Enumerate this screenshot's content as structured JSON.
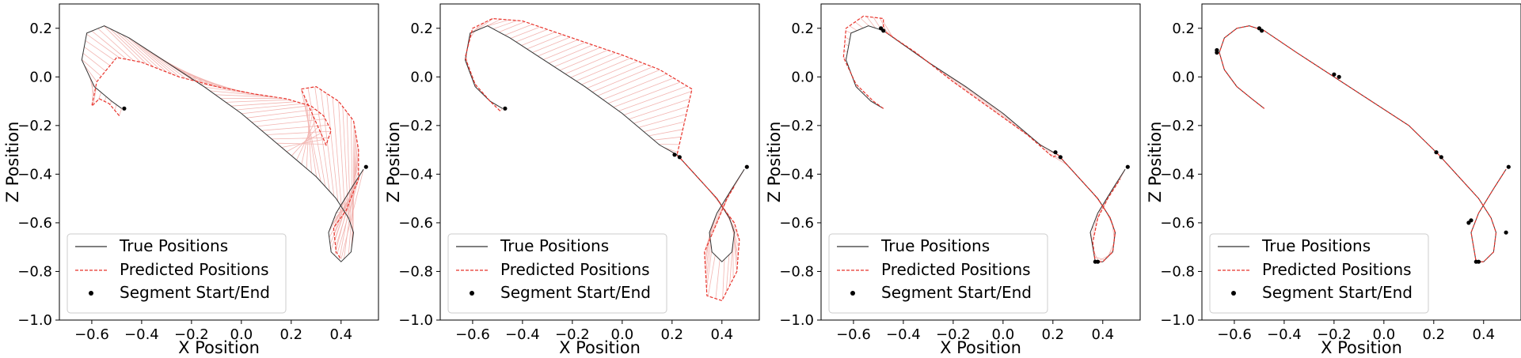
{
  "chart_data": [
    {
      "type": "line",
      "xlabel": "X Position",
      "ylabel": "Z Position",
      "xlim": [
        -0.73,
        0.55
      ],
      "ylim": [
        -1.0,
        0.3
      ],
      "xticks": [
        "-0.6",
        "-0.4",
        "-0.2",
        "0.0",
        "0.2",
        "0.4"
      ],
      "yticks": [
        "0.2",
        "0.0",
        "-0.2",
        "-0.4",
        "-0.6",
        "-0.8",
        "-1.0"
      ],
      "legend": {
        "position": "lower-left",
        "entries": [
          "True Positions",
          "Predicted Positions",
          "Segment Start/End"
        ]
      },
      "grid": false,
      "true_positions": {
        "x": [
          -0.48,
          -0.52,
          -0.59,
          -0.64,
          -0.62,
          -0.55,
          -0.45,
          -0.3,
          -0.15,
          0.0,
          0.15,
          0.3,
          0.38,
          0.43,
          0.45,
          0.44,
          0.4,
          0.36,
          0.35,
          0.38,
          0.44,
          0.49
        ],
        "y": [
          -0.13,
          -0.1,
          -0.04,
          0.07,
          0.18,
          0.21,
          0.16,
          0.06,
          -0.04,
          -0.15,
          -0.28,
          -0.41,
          -0.5,
          -0.58,
          -0.64,
          -0.72,
          -0.76,
          -0.72,
          -0.64,
          -0.56,
          -0.46,
          -0.38
        ]
      },
      "predicted_positions": {
        "x": [
          -0.49,
          -0.53,
          -0.57,
          -0.6,
          -0.58,
          -0.5,
          -0.4,
          -0.25,
          -0.1,
          0.05,
          0.18,
          0.28,
          0.33,
          0.36,
          0.34,
          0.24,
          0.3,
          0.39,
          0.45,
          0.47,
          0.47,
          0.42,
          0.37,
          0.38,
          0.4
        ],
        "y": [
          -0.16,
          -0.11,
          -0.09,
          -0.12,
          -0.02,
          0.08,
          0.06,
          0.0,
          -0.04,
          -0.07,
          -0.09,
          -0.12,
          -0.16,
          -0.22,
          -0.28,
          -0.05,
          -0.04,
          -0.1,
          -0.18,
          -0.3,
          -0.42,
          -0.55,
          -0.62,
          -0.72,
          -0.75
        ]
      },
      "segment_points": {
        "x": [
          -0.47,
          0.5
        ],
        "y": [
          -0.13,
          -0.37
        ]
      }
    },
    {
      "type": "line",
      "xlabel": "X Position",
      "ylabel": "Z Position",
      "xlim": [
        -0.73,
        0.55
      ],
      "ylim": [
        -1.0,
        0.3
      ],
      "xticks": [
        "-0.6",
        "-0.4",
        "-0.2",
        "0.0",
        "0.2",
        "0.4"
      ],
      "yticks": [
        "0.2",
        "0.0",
        "-0.2",
        "-0.4",
        "-0.6",
        "-0.8",
        "-1.0"
      ],
      "legend": {
        "position": "lower-left",
        "entries": [
          "True Positions",
          "Predicted Positions",
          "Segment Start/End"
        ]
      },
      "grid": false,
      "true_positions": {
        "x": [
          -0.48,
          -0.53,
          -0.59,
          -0.63,
          -0.61,
          -0.54,
          -0.45,
          -0.3,
          -0.15,
          0.0,
          0.15,
          0.22,
          0.3,
          0.38,
          0.43,
          0.45,
          0.44,
          0.4,
          0.36,
          0.35,
          0.38,
          0.44,
          0.49
        ],
        "y": [
          -0.13,
          -0.1,
          -0.04,
          0.07,
          0.18,
          0.21,
          0.16,
          0.06,
          -0.04,
          -0.15,
          -0.28,
          -0.32,
          -0.41,
          -0.5,
          -0.58,
          -0.64,
          -0.72,
          -0.76,
          -0.72,
          -0.64,
          -0.56,
          -0.46,
          -0.38
        ]
      },
      "predicted_positions": {
        "x": [
          -0.49,
          -0.53,
          -0.59,
          -0.63,
          -0.6,
          -0.52,
          -0.4,
          -0.2,
          0.0,
          0.15,
          0.28,
          0.22,
          0.3,
          0.38,
          0.42,
          0.45,
          0.47,
          0.46,
          0.4,
          0.34,
          0.33,
          0.38,
          0.42,
          0.45
        ],
        "y": [
          -0.14,
          -0.1,
          -0.03,
          0.08,
          0.2,
          0.24,
          0.23,
          0.16,
          0.09,
          0.03,
          -0.05,
          -0.32,
          -0.41,
          -0.5,
          -0.56,
          -0.6,
          -0.67,
          -0.8,
          -0.92,
          -0.9,
          -0.72,
          -0.6,
          -0.5,
          -0.45
        ]
      },
      "segment_points": {
        "x": [
          -0.47,
          0.21,
          0.23,
          0.5
        ],
        "y": [
          -0.13,
          -0.32,
          -0.33,
          -0.37
        ]
      }
    },
    {
      "type": "line",
      "xlabel": "X Position",
      "ylabel": "Z Position",
      "xlim": [
        -0.73,
        0.55
      ],
      "ylim": [
        -1.0,
        0.3
      ],
      "xticks": [
        "-0.6",
        "-0.4",
        "-0.2",
        "0.0",
        "0.2",
        "0.4"
      ],
      "yticks": [
        "0.2",
        "0.0",
        "-0.2",
        "-0.4",
        "-0.6",
        "-0.8",
        "-1.0"
      ],
      "legend": {
        "position": "lower-left",
        "entries": [
          "True Positions",
          "Predicted Positions",
          "Segment Start/End"
        ]
      },
      "grid": false,
      "true_positions": {
        "x": [
          -0.48,
          -0.53,
          -0.59,
          -0.63,
          -0.61,
          -0.54,
          -0.48,
          -0.3,
          -0.15,
          0.0,
          0.15,
          0.22,
          0.3,
          0.38,
          0.43,
          0.45,
          0.44,
          0.4,
          0.37,
          0.35,
          0.38,
          0.44,
          0.49
        ],
        "y": [
          -0.13,
          -0.1,
          -0.04,
          0.07,
          0.18,
          0.21,
          0.19,
          0.06,
          -0.04,
          -0.15,
          -0.28,
          -0.32,
          -0.41,
          -0.5,
          -0.58,
          -0.64,
          -0.72,
          -0.76,
          -0.76,
          -0.64,
          -0.56,
          -0.46,
          -0.38
        ]
      },
      "predicted_positions": {
        "x": [
          -0.48,
          -0.52,
          -0.59,
          -0.64,
          -0.63,
          -0.56,
          -0.48,
          -0.48,
          -0.35,
          -0.2,
          -0.05,
          0.1,
          0.2,
          0.22,
          0.3,
          0.38,
          0.43,
          0.45,
          0.44,
          0.4,
          0.37,
          0.36,
          0.38,
          0.42,
          0.47
        ],
        "y": [
          -0.13,
          -0.1,
          -0.03,
          0.08,
          0.2,
          0.25,
          0.24,
          0.19,
          0.1,
          -0.02,
          -0.13,
          -0.24,
          -0.33,
          -0.32,
          -0.41,
          -0.5,
          -0.58,
          -0.64,
          -0.72,
          -0.76,
          -0.76,
          -0.68,
          -0.58,
          -0.5,
          -0.42
        ]
      },
      "segment_points": {
        "x": [
          -0.49,
          -0.48,
          0.21,
          0.23,
          0.37,
          0.38,
          0.5
        ],
        "y": [
          0.2,
          0.19,
          -0.31,
          -0.33,
          -0.76,
          -0.76,
          -0.37
        ]
      }
    },
    {
      "type": "line",
      "xlabel": "X Position",
      "ylabel": "Z Position",
      "xlim": [
        -0.73,
        0.55
      ],
      "ylim": [
        -1.0,
        0.3
      ],
      "xticks": [
        "-0.6",
        "-0.4",
        "-0.2",
        "0.0",
        "0.2",
        "0.4"
      ],
      "yticks": [
        "0.2",
        "0.0",
        "-0.2",
        "-0.4",
        "-0.6",
        "-0.8",
        "-1.0"
      ],
      "legend": {
        "position": "lower-left",
        "entries": [
          "True Positions",
          "Predicted Positions",
          "Segment Start/End"
        ]
      },
      "grid": false,
      "true_positions": {
        "x": [
          -0.48,
          -0.53,
          -0.59,
          -0.64,
          -0.66,
          -0.64,
          -0.59,
          -0.54,
          -0.48,
          -0.35,
          -0.2,
          -0.05,
          0.1,
          0.22,
          0.3,
          0.38,
          0.43,
          0.45,
          0.44,
          0.4,
          0.37,
          0.35,
          0.38,
          0.44,
          0.49
        ],
        "y": [
          -0.13,
          -0.09,
          -0.04,
          0.03,
          0.1,
          0.16,
          0.2,
          0.21,
          0.19,
          0.1,
          0.0,
          -0.1,
          -0.2,
          -0.32,
          -0.41,
          -0.5,
          -0.58,
          -0.64,
          -0.72,
          -0.76,
          -0.76,
          -0.64,
          -0.56,
          -0.46,
          -0.38
        ]
      },
      "predicted_positions": {
        "x": [
          -0.48,
          -0.53,
          -0.59,
          -0.64,
          -0.66,
          -0.64,
          -0.59,
          -0.54,
          -0.48,
          -0.35,
          -0.2,
          -0.05,
          0.1,
          0.22,
          0.3,
          0.38,
          0.43,
          0.45,
          0.44,
          0.4,
          0.37,
          0.35,
          0.38,
          0.44,
          0.49
        ],
        "y": [
          -0.13,
          -0.09,
          -0.04,
          0.03,
          0.1,
          0.16,
          0.2,
          0.21,
          0.19,
          0.1,
          0.0,
          -0.1,
          -0.2,
          -0.32,
          -0.41,
          -0.5,
          -0.58,
          -0.64,
          -0.72,
          -0.76,
          -0.76,
          -0.64,
          -0.56,
          -0.46,
          -0.38
        ]
      },
      "segment_points": {
        "x": [
          -0.67,
          -0.67,
          -0.5,
          -0.49,
          -0.2,
          -0.18,
          0.21,
          0.23,
          0.34,
          0.35,
          0.37,
          0.38,
          0.49,
          0.5
        ],
        "y": [
          0.1,
          0.11,
          0.2,
          0.19,
          0.01,
          0.0,
          -0.31,
          -0.33,
          -0.6,
          -0.59,
          -0.76,
          -0.76,
          -0.64,
          -0.37
        ]
      }
    }
  ],
  "colors": {
    "true": "#333333",
    "predicted": "#e8332b",
    "fill": "#f2b5b1",
    "points": "#000000"
  },
  "legend_symbols": {
    "true": "solid-line",
    "predicted": "dashed-line",
    "segment": "dot"
  }
}
